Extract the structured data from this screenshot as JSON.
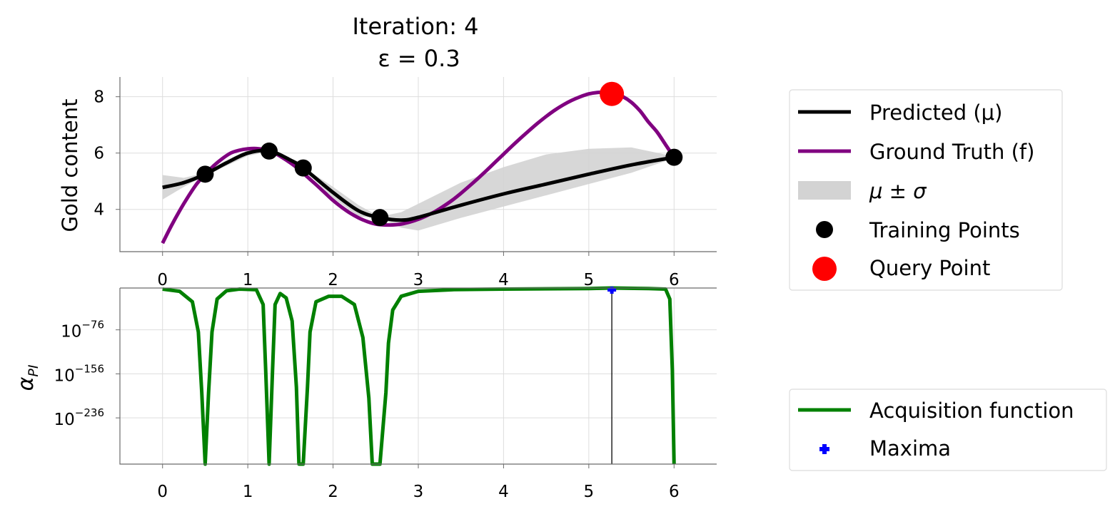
{
  "chart_data": [
    {
      "type": "line",
      "title": "Iteration: 4",
      "subtitle": "ε = 0.3",
      "ylabel": "Gold content",
      "xlim": [
        -0.5,
        6.5
      ],
      "ylim": [
        2.5,
        8.7
      ],
      "xticks": [
        0,
        1,
        2,
        3,
        4,
        5,
        6
      ],
      "yticks": [
        4,
        6,
        8
      ],
      "grid": true,
      "legend_position": "right",
      "series": [
        {
          "name": "Predicted (μ)",
          "color": "#000000",
          "x": [
            0,
            0.25,
            0.5,
            0.75,
            1.0,
            1.25,
            1.5,
            1.65,
            2.0,
            2.3,
            2.55,
            2.8,
            3.0,
            3.5,
            4.0,
            4.5,
            5.0,
            5.5,
            6.0
          ],
          "y": [
            4.78,
            4.95,
            5.25,
            5.65,
            6.0,
            6.08,
            5.75,
            5.47,
            4.6,
            3.95,
            3.71,
            3.62,
            3.72,
            4.15,
            4.55,
            4.9,
            5.25,
            5.58,
            5.85
          ]
        },
        {
          "name": "Ground Truth (f)",
          "color": "#800080",
          "x": [
            0,
            0.1,
            0.2,
            0.3,
            0.4,
            0.5,
            0.6,
            0.7,
            0.8,
            0.9,
            1.0,
            1.1,
            1.2,
            1.3,
            1.4,
            1.5,
            1.6,
            1.7,
            1.8,
            1.9,
            2.0,
            2.1,
            2.2,
            2.3,
            2.4,
            2.5,
            2.6,
            2.7,
            2.8,
            2.9,
            3.0,
            3.1,
            3.2,
            3.3,
            3.4,
            3.5,
            3.6,
            3.7,
            3.8,
            3.9,
            4.0,
            4.1,
            4.2,
            4.3,
            4.4,
            4.5,
            4.6,
            4.7,
            4.8,
            4.9,
            5.0,
            5.1,
            5.2,
            5.3,
            5.4,
            5.5,
            5.6,
            5.7,
            5.8,
            5.9,
            6.0
          ],
          "y": [
            2.8,
            3.4,
            3.95,
            4.45,
            4.9,
            5.25,
            5.55,
            5.8,
            6.0,
            6.1,
            6.15,
            6.16,
            6.12,
            6.02,
            5.85,
            5.65,
            5.42,
            5.15,
            4.88,
            4.6,
            4.32,
            4.08,
            3.87,
            3.7,
            3.57,
            3.48,
            3.45,
            3.45,
            3.48,
            3.55,
            3.65,
            3.78,
            3.93,
            4.12,
            4.33,
            4.57,
            4.83,
            5.1,
            5.38,
            5.67,
            5.96,
            6.25,
            6.53,
            6.8,
            7.06,
            7.3,
            7.52,
            7.71,
            7.87,
            8.0,
            8.1,
            8.15,
            8.16,
            8.11,
            8.0,
            7.8,
            7.5,
            7.1,
            6.75,
            6.3,
            5.85
          ]
        }
      ],
      "band": {
        "name": "μ ± σ",
        "color": "#d3d3d3",
        "x": [
          0,
          0.25,
          0.5,
          0.75,
          1.0,
          1.25,
          1.5,
          1.65,
          2.0,
          2.3,
          2.55,
          2.8,
          3.0,
          3.5,
          4.0,
          4.5,
          5.0,
          5.5,
          6.0
        ],
        "lower": [
          4.35,
          4.8,
          5.2,
          5.55,
          5.9,
          6.05,
          5.68,
          5.45,
          4.4,
          3.75,
          3.68,
          3.35,
          3.25,
          3.7,
          4.1,
          4.5,
          4.9,
          5.3,
          5.82
        ],
        "upper": [
          5.22,
          5.12,
          5.3,
          5.75,
          6.1,
          6.1,
          5.82,
          5.5,
          4.8,
          4.15,
          3.74,
          3.9,
          4.2,
          4.95,
          5.5,
          5.95,
          6.15,
          6.2,
          5.88
        ]
      },
      "training_points": {
        "name": "Training Points",
        "color": "#000000",
        "x": [
          0.5,
          1.25,
          1.65,
          2.55,
          6.0
        ],
        "y": [
          5.25,
          6.07,
          5.47,
          3.71,
          5.85
        ]
      },
      "query_point": {
        "name": "Query Point",
        "color": "#ff0000",
        "x": 5.27,
        "y": 8.1
      }
    },
    {
      "type": "line",
      "ylabel": "α",
      "ylabel_sub": "PI",
      "xlim": [
        -0.5,
        6.5
      ],
      "ylim_log10": [
        -320,
        0
      ],
      "xticks": [
        0,
        1,
        2,
        3,
        4,
        5,
        6
      ],
      "yticks_log10": [
        -76,
        -156,
        -236
      ],
      "ytick_base": "10",
      "grid": true,
      "legend_position": "right",
      "series": [
        {
          "name": "Acquisition function",
          "color": "#008000",
          "x": [
            0,
            0.2,
            0.35,
            0.42,
            0.46,
            0.5,
            0.54,
            0.58,
            0.64,
            0.75,
            0.9,
            1.1,
            1.18,
            1.21,
            1.25,
            1.29,
            1.32,
            1.38,
            1.45,
            1.52,
            1.57,
            1.6,
            1.65,
            1.7,
            1.73,
            1.8,
            1.95,
            2.1,
            2.25,
            2.35,
            2.42,
            2.46,
            2.55,
            2.62,
            2.65,
            2.7,
            2.8,
            3.0,
            3.4,
            4.0,
            5.0,
            5.27,
            5.7,
            5.9,
            5.95,
            5.98,
            6.0
          ],
          "y_log10": [
            -2,
            -6,
            -25,
            -80,
            -190,
            -320,
            -190,
            -80,
            -20,
            -5,
            -2,
            -3,
            -30,
            -150,
            -320,
            -150,
            -30,
            -10,
            -18,
            -60,
            -180,
            -320,
            -320,
            -180,
            -80,
            -25,
            -15,
            -15,
            -30,
            -90,
            -200,
            -320,
            -320,
            -190,
            -100,
            -40,
            -15,
            -6,
            -3,
            -2,
            -1,
            0,
            -1,
            -2,
            -20,
            -150,
            -320
          ]
        }
      ],
      "maxima": {
        "name": "Maxima",
        "color": "#0000ff",
        "x": 5.27,
        "y_log10": 0
      }
    }
  ]
}
